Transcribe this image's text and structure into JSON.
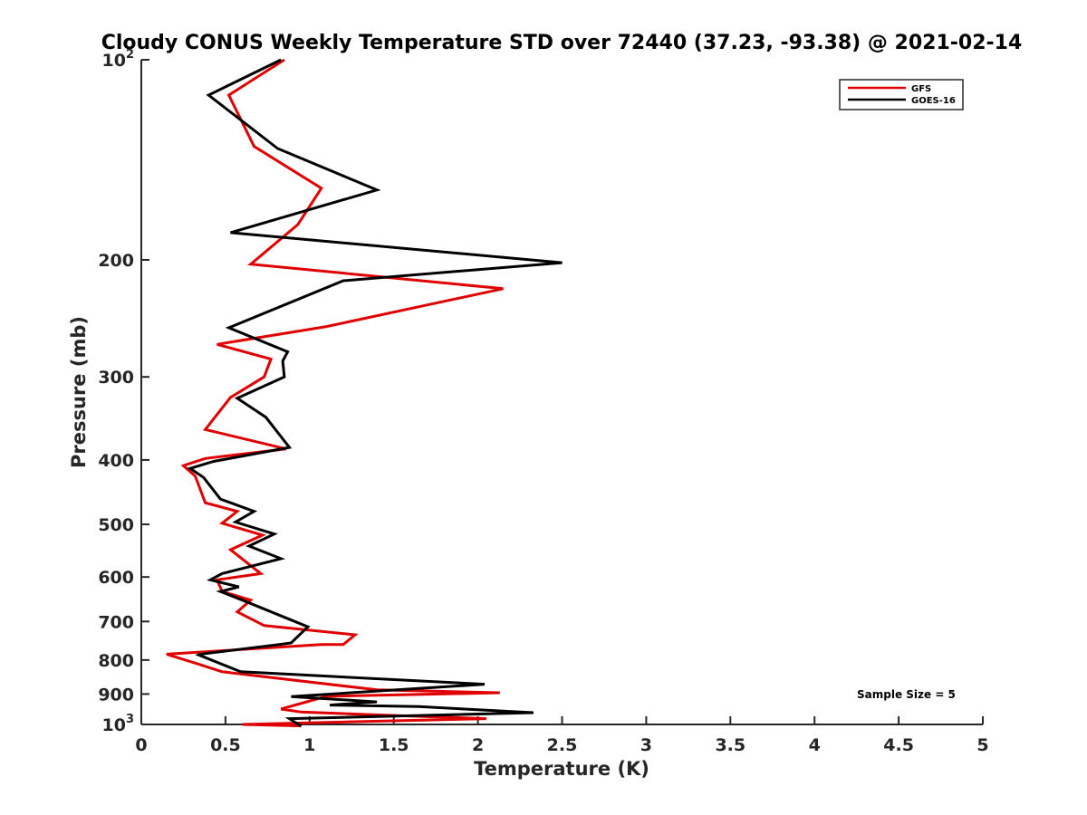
{
  "chart_data": {
    "type": "line",
    "title": "Cloudy CONUS Weekly Temperature STD over 72440 (37.23, -93.38) @ 2021-02-14",
    "xlabel": "Temperature (K)",
    "ylabel": "Pressure (mb)",
    "xlim": [
      0,
      5
    ],
    "ylim": [
      100,
      1000
    ],
    "y_scale": "log",
    "y_reversed": true,
    "x_ticks": [
      0,
      0.5,
      1,
      1.5,
      2,
      2.5,
      3,
      3.5,
      4,
      4.5,
      5
    ],
    "x_tick_labels": [
      "0",
      "0.5",
      "1",
      "1.5",
      "2",
      "2.5",
      "3",
      "3.5",
      "4",
      "4.5",
      "5"
    ],
    "y_ticks": [
      100,
      200,
      300,
      400,
      500,
      600,
      700,
      800,
      900,
      1000
    ],
    "y_tick_labels": [
      {
        "base": "10",
        "exp": "2"
      },
      {
        "base": "200",
        "exp": ""
      },
      {
        "base": "300",
        "exp": ""
      },
      {
        "base": "400",
        "exp": ""
      },
      {
        "base": "500",
        "exp": ""
      },
      {
        "base": "600",
        "exp": ""
      },
      {
        "base": "700",
        "exp": ""
      },
      {
        "base": "800",
        "exp": ""
      },
      {
        "base": "900",
        "exp": ""
      },
      {
        "base": "10",
        "exp": "3"
      }
    ],
    "grid": false,
    "legend_position": "top-right",
    "annotation": "Sample Size = 5",
    "series": [
      {
        "name": "GFS",
        "color": "#e00000",
        "x": [
          0.85,
          0.52,
          0.67,
          1.07,
          0.93,
          0.65,
          2.15,
          1.1,
          0.45,
          0.77,
          0.73,
          0.53,
          0.38,
          0.86,
          0.38,
          0.25,
          0.32,
          0.38,
          0.57,
          0.48,
          0.72,
          0.53,
          0.71,
          0.45,
          0.48,
          0.65,
          0.57,
          0.73,
          1.27,
          1.2,
          1.07,
          0.15,
          0.33,
          0.48,
          1.4,
          2.13,
          2.07,
          1.1,
          0.83,
          0.95,
          1.52,
          2.05,
          0.6,
          0.95
        ],
        "y": [
          100,
          113,
          135,
          156,
          177,
          203,
          221,
          252,
          268,
          282,
          300,
          322,
          360,
          385,
          398,
          408,
          423,
          464,
          478,
          498,
          519,
          546,
          593,
          606,
          631,
          650,
          677,
          710,
          733,
          758,
          758,
          784,
          810,
          833,
          887,
          896,
          897,
          907,
          948,
          958,
          970,
          980,
          1000,
          1005
        ],
        "_note": "unused"
      },
      {
        "name": "GOES-16",
        "color": "#000000",
        "x": [
          0.83,
          0.4,
          0.81,
          1.4,
          0.53,
          2.5,
          1.2,
          0.52,
          0.87,
          0.84,
          0.85,
          0.57,
          0.74,
          0.88,
          0.43,
          0.29,
          0.37,
          0.47,
          0.67,
          0.56,
          0.79,
          0.64,
          0.83,
          0.48,
          0.41,
          0.58,
          0.47,
          0.6,
          0.99,
          0.89,
          0.82,
          0.35,
          0.34,
          0.59,
          2.04,
          0.89,
          1.4,
          1.12,
          1.65,
          2.33,
          1.05,
          0.88,
          0.95
        ],
        "y": [
          100,
          113,
          136,
          157,
          182,
          202,
          215,
          253,
          275,
          284,
          300,
          323,
          345,
          383,
          402,
          412,
          425,
          458,
          478,
          496,
          517,
          539,
          563,
          593,
          606,
          621,
          631,
          650,
          713,
          754,
          758,
          784,
          786,
          833,
          870,
          908,
          925,
          935,
          940,
          960,
          978,
          980,
          1006
        ]
      }
    ]
  }
}
